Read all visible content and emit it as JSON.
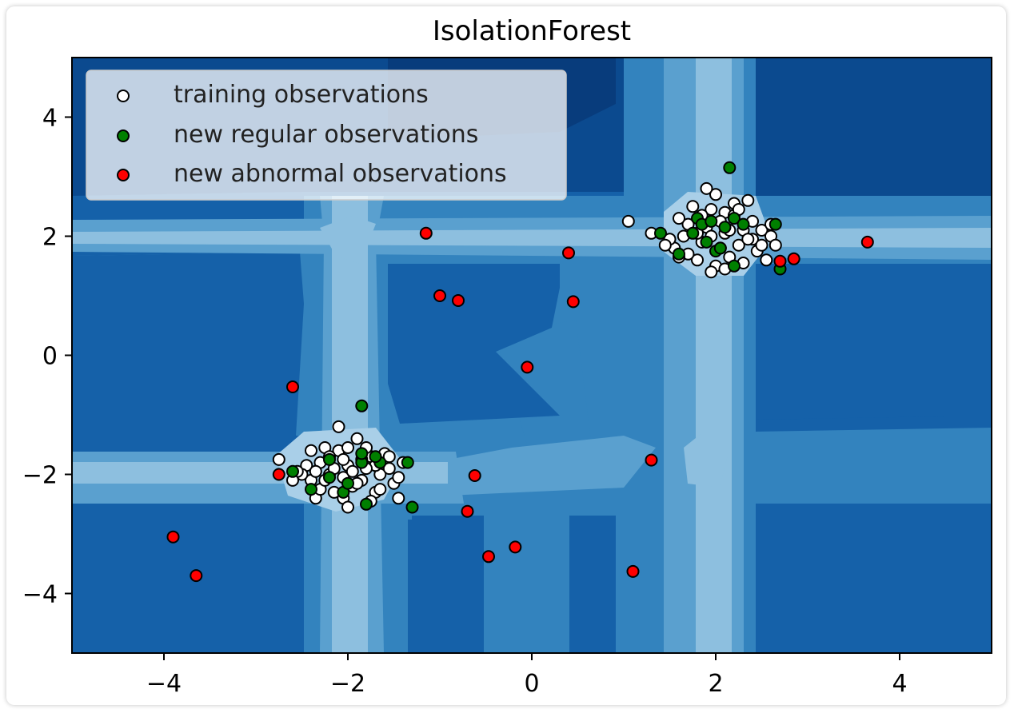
{
  "chart_data": {
    "type": "scatter",
    "title": "IsolationForest",
    "xlabel": "",
    "ylabel": "",
    "xlim": [
      -5,
      5
    ],
    "ylim": [
      -5,
      5
    ],
    "xticks": [
      -4,
      -2,
      0,
      2,
      4
    ],
    "yticks": [
      -4,
      -2,
      0,
      2,
      4
    ],
    "xtick_labels": [
      "−4",
      "−2",
      "0",
      "2",
      "4"
    ],
    "ytick_labels": [
      "−4",
      "−2",
      "0",
      "2",
      "4"
    ],
    "grid": false,
    "legend_position": "top-left",
    "background": "filled contour of the anomaly decision function (blues colormap)",
    "series": [
      {
        "name": "training observations",
        "color": "#ffffff",
        "points": [
          [
            2.1,
            2.4
          ],
          [
            1.95,
            2.45
          ],
          [
            2.2,
            2.55
          ],
          [
            2.3,
            2.1
          ],
          [
            1.7,
            2.2
          ],
          [
            1.85,
            1.9
          ],
          [
            2.05,
            1.8
          ],
          [
            2.4,
            1.95
          ],
          [
            1.8,
            1.6
          ],
          [
            2.15,
            1.65
          ],
          [
            2.0,
            1.5
          ],
          [
            2.5,
            2.1
          ],
          [
            2.6,
            2.0
          ],
          [
            1.6,
            2.3
          ],
          [
            1.75,
            2.5
          ],
          [
            2.35,
            2.6
          ],
          [
            2.45,
            1.75
          ],
          [
            2.25,
            1.85
          ],
          [
            1.9,
            2.15
          ],
          [
            2.1,
            2.05
          ],
          [
            1.55,
            1.8
          ],
          [
            1.65,
            2.0
          ],
          [
            2.0,
            2.7
          ],
          [
            2.3,
            1.55
          ],
          [
            2.55,
            1.6
          ],
          [
            1.95,
            1.4
          ],
          [
            2.2,
            2.35
          ],
          [
            1.7,
            1.7
          ],
          [
            2.05,
            2.25
          ],
          [
            1.85,
            2.35
          ],
          [
            2.4,
            2.25
          ],
          [
            2.65,
            1.85
          ],
          [
            1.5,
            1.95
          ],
          [
            2.15,
            2.1
          ],
          [
            1.8,
            2.05
          ],
          [
            1.95,
            2.0
          ],
          [
            2.25,
            2.45
          ],
          [
            1.6,
            1.65
          ],
          [
            2.5,
            1.85
          ],
          [
            2.35,
            1.95
          ],
          [
            1.3,
            2.05
          ],
          [
            1.05,
            2.25
          ],
          [
            1.9,
            2.8
          ],
          [
            2.6,
            2.2
          ],
          [
            2.1,
            1.45
          ],
          [
            1.45,
            1.85
          ],
          [
            -2.0,
            -1.85
          ],
          [
            -2.2,
            -2.0
          ],
          [
            -1.85,
            -2.1
          ],
          [
            -2.1,
            -1.6
          ],
          [
            -1.75,
            -1.7
          ],
          [
            -2.3,
            -1.8
          ],
          [
            -1.95,
            -2.2
          ],
          [
            -2.05,
            -2.4
          ],
          [
            -1.65,
            -2.0
          ],
          [
            -2.4,
            -2.1
          ],
          [
            -1.8,
            -1.55
          ],
          [
            -2.15,
            -2.3
          ],
          [
            -1.55,
            -1.9
          ],
          [
            -2.25,
            -1.55
          ],
          [
            -2.45,
            -1.85
          ],
          [
            -1.7,
            -2.3
          ],
          [
            -2.0,
            -2.55
          ],
          [
            -1.9,
            -1.4
          ],
          [
            -2.35,
            -2.4
          ],
          [
            -1.5,
            -2.15
          ],
          [
            -1.4,
            -1.8
          ],
          [
            -2.5,
            -2.0
          ],
          [
            -2.1,
            -1.2
          ],
          [
            -1.85,
            -1.75
          ],
          [
            -2.05,
            -2.05
          ],
          [
            -2.2,
            -1.7
          ],
          [
            -1.95,
            -1.95
          ],
          [
            -1.6,
            -1.65
          ],
          [
            -2.55,
            -1.95
          ],
          [
            -1.45,
            -2.4
          ],
          [
            -2.3,
            -2.25
          ],
          [
            -1.75,
            -2.45
          ],
          [
            -2.15,
            -1.9
          ],
          [
            -1.9,
            -2.15
          ],
          [
            -2.4,
            -1.6
          ],
          [
            -1.7,
            -1.85
          ],
          [
            -2.0,
            -1.55
          ],
          [
            -2.25,
            -2.1
          ],
          [
            -1.8,
            -1.9
          ],
          [
            -2.6,
            -2.1
          ],
          [
            -2.75,
            -1.75
          ],
          [
            -1.65,
            -2.25
          ],
          [
            -2.35,
            -1.95
          ],
          [
            -2.05,
            -1.75
          ],
          [
            -1.55,
            -1.7
          ],
          [
            -1.45,
            -2.05
          ]
        ]
      },
      {
        "name": "new regular observations",
        "color": "#008000",
        "points": [
          [
            2.15,
            3.15
          ],
          [
            1.8,
            2.3
          ],
          [
            2.2,
            2.3
          ],
          [
            1.85,
            2.2
          ],
          [
            1.75,
            2.05
          ],
          [
            1.9,
            1.9
          ],
          [
            2.0,
            1.75
          ],
          [
            2.1,
            2.15
          ],
          [
            1.6,
            1.7
          ],
          [
            1.4,
            2.05
          ],
          [
            2.2,
            1.5
          ],
          [
            2.65,
            2.2
          ],
          [
            2.7,
            1.45
          ],
          [
            2.3,
            2.2
          ],
          [
            2.05,
            1.8
          ],
          [
            1.95,
            2.25
          ],
          [
            -1.85,
            -0.85
          ],
          [
            -2.6,
            -1.95
          ],
          [
            -2.4,
            -2.25
          ],
          [
            -2.2,
            -1.75
          ],
          [
            -2.05,
            -2.3
          ],
          [
            -1.85,
            -1.8
          ],
          [
            -1.65,
            -1.8
          ],
          [
            -1.35,
            -1.8
          ],
          [
            -1.3,
            -2.55
          ],
          [
            -1.8,
            -2.5
          ],
          [
            -2.0,
            -2.15
          ],
          [
            -1.85,
            -1.65
          ],
          [
            -2.2,
            -2.05
          ],
          [
            -1.7,
            -1.7
          ]
        ]
      },
      {
        "name": "new abnormal observations",
        "color": "#ff0000",
        "points": [
          [
            -3.9,
            -3.05
          ],
          [
            -3.65,
            -3.7
          ],
          [
            -2.75,
            -2.0
          ],
          [
            -2.6,
            -0.53
          ],
          [
            -1.15,
            2.05
          ],
          [
            -1.0,
            1.0
          ],
          [
            -0.8,
            0.92
          ],
          [
            -0.05,
            -0.2
          ],
          [
            -0.62,
            -2.02
          ],
          [
            -0.7,
            -2.62
          ],
          [
            -0.47,
            -3.38
          ],
          [
            -0.18,
            -3.22
          ],
          [
            0.4,
            1.72
          ],
          [
            0.45,
            0.9
          ],
          [
            1.1,
            -3.63
          ],
          [
            1.3,
            -1.76
          ],
          [
            2.7,
            1.58
          ],
          [
            2.85,
            1.62
          ],
          [
            3.65,
            1.9
          ]
        ]
      }
    ]
  }
}
